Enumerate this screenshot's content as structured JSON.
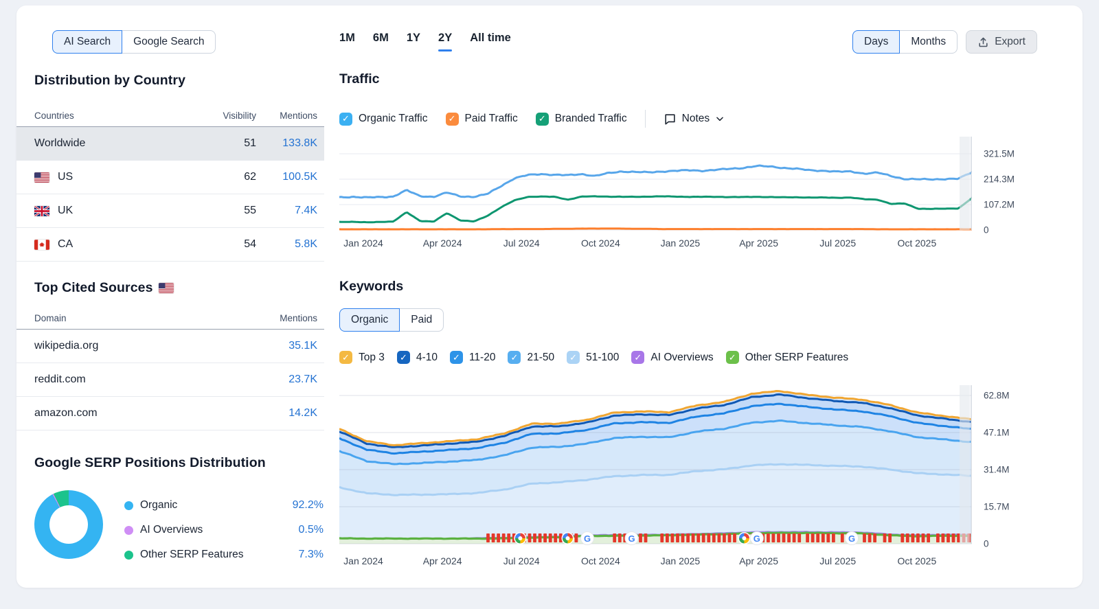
{
  "header": {
    "search_toggle": {
      "options": [
        "AI Search",
        "Google Search"
      ],
      "selected": "AI Search"
    },
    "period_tabs": {
      "options": [
        "1M",
        "6M",
        "1Y",
        "2Y",
        "All time"
      ],
      "selected": "2Y"
    },
    "granularity_toggle": {
      "options": [
        "Days",
        "Months"
      ],
      "selected": "Days"
    },
    "export_label": "Export"
  },
  "sidebar": {
    "country_section": {
      "title": "Distribution by Country",
      "columns": [
        "Countries",
        "Visibility",
        "Mentions"
      ],
      "rows": [
        {
          "country": "Worldwide",
          "flag": null,
          "visibility": "51",
          "mentions": "133.8K",
          "selected": true
        },
        {
          "country": "US",
          "flag": "us",
          "visibility": "62",
          "mentions": "100.5K",
          "selected": false
        },
        {
          "country": "UK",
          "flag": "uk",
          "visibility": "55",
          "mentions": "7.4K",
          "selected": false
        },
        {
          "country": "CA",
          "flag": "ca",
          "visibility": "54",
          "mentions": "5.8K",
          "selected": false
        }
      ]
    },
    "sources_section": {
      "title": "Top Cited Sources",
      "flag": "us",
      "columns": [
        "Domain",
        "Mentions"
      ],
      "rows": [
        {
          "domain": "wikipedia.org",
          "mentions": "35.1K"
        },
        {
          "domain": "reddit.com",
          "mentions": "23.7K"
        },
        {
          "domain": "amazon.com",
          "mentions": "14.2K"
        }
      ]
    },
    "serp_section": {
      "title": "Google SERP Positions Distribution",
      "legend": [
        {
          "label": "Organic",
          "value": "92.2%",
          "color": "#34b4f2"
        },
        {
          "label": "AI Overviews",
          "value": "0.5%",
          "color": "#cf8ef5"
        },
        {
          "label": "Other SERP Features",
          "value": "7.3%",
          "color": "#1cc38c"
        }
      ]
    }
  },
  "traffic": {
    "title": "Traffic",
    "legend": [
      {
        "label": "Organic Traffic",
        "color": "#3bb0f2"
      },
      {
        "label": "Paid Traffic",
        "color": "#fb8b3d"
      },
      {
        "label": "Branded Traffic",
        "color": "#15a077"
      }
    ],
    "notes_label": "Notes"
  },
  "keywords": {
    "title": "Keywords",
    "toggle": {
      "options": [
        "Organic",
        "Paid"
      ],
      "selected": "Organic"
    },
    "legend": [
      {
        "label": "Top 3",
        "color": "#f4b942"
      },
      {
        "label": "4-10",
        "color": "#1666c0"
      },
      {
        "label": "11-20",
        "color": "#2d93e8"
      },
      {
        "label": "21-50",
        "color": "#57aef0"
      },
      {
        "label": "51-100",
        "color": "#abd3f5"
      },
      {
        "label": "AI Overviews",
        "color": "#a876e8"
      },
      {
        "label": "Other SERP Features",
        "color": "#6cc04a"
      }
    ]
  },
  "chart_data": [
    {
      "type": "line",
      "title": "Traffic",
      "unit": "M",
      "x_ticks": [
        "Jan 2024",
        "Apr 2024",
        "Jul 2024",
        "Oct 2024",
        "Jan 2025",
        "Apr 2025",
        "Jul 2025",
        "Oct 2025"
      ],
      "y_ticks": [
        "321.5M",
        "214.3M",
        "107.2M",
        "0"
      ],
      "ylim": [
        0,
        321500000
      ],
      "series": [
        {
          "name": "Organic Traffic",
          "color": "#58a6ea",
          "values": [
            138,
            140,
            137,
            139,
            141,
            168,
            143,
            140,
            158,
            142,
            140,
            152,
            185,
            218,
            232,
            236,
            233,
            231,
            236,
            228,
            240,
            247,
            245,
            243,
            247,
            250,
            252,
            250,
            254,
            258,
            262,
            270,
            268,
            262,
            258,
            252,
            250,
            246,
            247,
            238,
            242,
            228,
            215,
            214,
            214,
            215,
            216,
            245
          ]
        },
        {
          "name": "Branded Traffic",
          "color": "#0e9670",
          "values": [
            34,
            34,
            33,
            34,
            35,
            76,
            38,
            35,
            72,
            40,
            36,
            60,
            95,
            125,
            140,
            141,
            140,
            128,
            141,
            142,
            141,
            140,
            140,
            141,
            142,
            141,
            140,
            140,
            140,
            139,
            139,
            140,
            139,
            138,
            138,
            137,
            137,
            136,
            137,
            130,
            128,
            110,
            112,
            90,
            89,
            90,
            91,
            135
          ]
        },
        {
          "name": "Paid Traffic",
          "color": "#fd7e2b",
          "values": [
            3,
            3,
            3,
            3,
            3,
            3,
            3,
            3,
            3,
            3,
            3,
            3,
            4,
            4,
            4,
            4,
            5,
            5,
            6,
            6,
            6,
            6,
            5,
            5,
            4,
            4,
            4,
            4,
            4,
            4,
            4,
            4,
            4,
            4,
            4,
            4,
            4,
            4,
            4,
            4,
            3,
            3,
            3,
            3,
            3,
            3,
            3,
            3
          ]
        }
      ]
    },
    {
      "type": "area-stacked",
      "title": "Keywords",
      "unit": "M",
      "x_ticks": [
        "Jan 2024",
        "Apr 2024",
        "Jul 2024",
        "Oct 2024",
        "Jan 2025",
        "Apr 2025",
        "Jul 2025",
        "Oct 2025"
      ],
      "y_ticks": [
        "62.8M",
        "47.1M",
        "31.4M",
        "15.7M",
        "0"
      ],
      "ylim": [
        0,
        62800000
      ],
      "series": [
        {
          "name": "Other SERP Features",
          "color": "#5ab140",
          "fill": "#e3f0dc",
          "values": [
            2.3,
            2.2,
            2.2,
            2.2,
            2.2,
            2.2,
            2.3,
            2.6,
            2.8,
            3.3,
            3.4,
            3.5,
            3.6,
            3.9,
            4.1,
            4.5,
            4.6,
            4.6,
            4.5,
            4.4,
            3.6,
            3.2,
            3.4,
            3.4
          ]
        },
        {
          "name": "AI Overviews",
          "color": "#9f86e0",
          "fill": "none",
          "values": [
            0,
            0,
            0,
            0,
            0,
            0.3,
            0.35,
            0.35,
            0.35,
            0.4,
            0.4,
            0.4,
            0.4,
            0.4,
            0.45,
            0.5,
            0.5,
            0.5,
            0.5,
            0.5,
            0.5,
            0.5,
            0.55,
            0.55
          ]
        },
        {
          "name": "51-100",
          "color": "#a9d0f4",
          "fill": "#e0edfb",
          "values": [
            21.6,
            19.2,
            18.5,
            18.6,
            18.8,
            19.0,
            20.3,
            22.5,
            22.9,
            23.4,
            24.8,
            25.2,
            25.2,
            26.5,
            27.0,
            28.2,
            28.6,
            28.3,
            28.0,
            27.8,
            27.4,
            26.2,
            25.4,
            24.8
          ]
        },
        {
          "name": "21-50",
          "color": "#49a4ef",
          "fill": "#d6e8fa",
          "values": [
            15.4,
            13.6,
            13.0,
            13.4,
            13.8,
            14.0,
            14.5,
            15.3,
            15.0,
            15.3,
            16.2,
            16.2,
            15.9,
            16.7,
            17.2,
            18.1,
            18.4,
            17.7,
            17.2,
            16.8,
            16.2,
            15.3,
            14.8,
            14.3
          ]
        },
        {
          "name": "11-20",
          "color": "#1e83e3",
          "fill": "#cce0fa",
          "values": [
            5.4,
            4.8,
            4.6,
            4.8,
            4.9,
            5.0,
            5.3,
            5.8,
            5.7,
            5.8,
            6.2,
            6.2,
            6.1,
            6.4,
            6.5,
            7.0,
            7.2,
            6.9,
            6.7,
            6.6,
            6.4,
            6.0,
            5.7,
            5.5
          ]
        },
        {
          "name": "4-10",
          "color": "#0f58b4",
          "fill": "#c3daf8",
          "values": [
            2.9,
            2.6,
            2.5,
            2.6,
            2.7,
            2.7,
            2.9,
            3.1,
            3.0,
            3.1,
            3.3,
            3.3,
            3.3,
            3.4,
            3.5,
            3.8,
            3.9,
            3.7,
            3.6,
            3.6,
            3.4,
            3.2,
            3.1,
            3.0
          ]
        },
        {
          "name": "Top 3",
          "color": "#f0a632",
          "fill": "#d2e4fa",
          "values": [
            1.1,
            1.0,
            0.95,
            1.0,
            1.0,
            1.05,
            1.1,
            1.2,
            1.15,
            1.2,
            1.25,
            1.25,
            1.25,
            1.3,
            1.35,
            1.45,
            1.5,
            1.4,
            1.4,
            1.35,
            1.3,
            1.2,
            1.15,
            1.1
          ]
        }
      ],
      "note_markers": {
        "flag_color": "#e5372b",
        "clusters": [
          [
            0.235,
            0.375
          ],
          [
            0.435,
            0.49
          ],
          [
            0.51,
            0.63
          ],
          [
            0.645,
            0.73
          ],
          [
            0.74,
            0.785
          ],
          [
            0.795,
            0.81
          ],
          [
            0.83,
            0.85
          ],
          [
            0.862,
            0.876
          ],
          [
            0.89,
            0.936
          ],
          [
            0.946,
            0.999
          ]
        ],
        "google_icons": [
          0.392,
          0.462,
          0.66,
          0.81
        ],
        "dot_icons": [
          0.286,
          0.361,
          0.64
        ]
      }
    }
  ]
}
